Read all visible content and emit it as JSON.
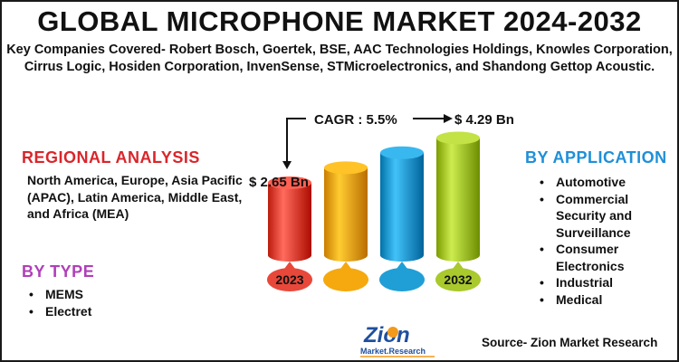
{
  "title": "GLOBAL MICROPHONE MARKET 2024-2032",
  "subtitle": "Key Companies Covered- Robert Bosch, Goertek, BSE, AAC Technologies Holdings, Knowles Corporation, Cirrus Logic, Hosiden Corporation, InvenSense, STMicroelectronics, and Shandong Gettop Acoustic.",
  "regional": {
    "heading": "REGIONAL  ANALYSIS",
    "text": "North America, Europe, Asia Pacific (APAC), Latin America, Middle East, and Africa (MEA)"
  },
  "type": {
    "heading": "BY  TYPE",
    "items": [
      "MEMS",
      "Electret"
    ]
  },
  "application": {
    "heading": "BY APPLICATION",
    "items": [
      "Automotive",
      "Commercial Security and Surveillance",
      "Consumer Electronics",
      "Industrial",
      "Medical"
    ]
  },
  "source": "Source- Zion Market Research",
  "logo": {
    "word1": "Zion",
    "word2": "Market.Research"
  },
  "colors": {
    "regional": "#d9262b",
    "type": "#b03fb8",
    "application": "#1f8fd8",
    "bar1": "#e8483a",
    "bar2": "#f5a90e",
    "bar3": "#1f9fd6",
    "bar4": "#a9c92c"
  },
  "chart_data": {
    "type": "bar",
    "categories": [
      "2023",
      "",
      "",
      "2032"
    ],
    "values": [
      2.65,
      3.2,
      3.75,
      4.29
    ],
    "start_label": "$ 2.65 Bn",
    "end_label": "$ 4.29 Bn",
    "cagr_label": "CAGR : 5.5%",
    "unit": "Bn",
    "title": "",
    "xlabel": "",
    "ylabel": ""
  }
}
